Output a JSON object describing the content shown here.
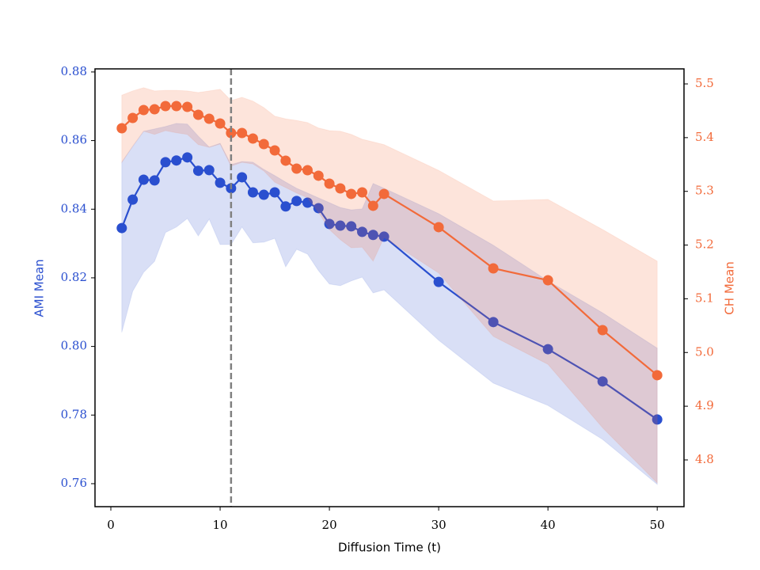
{
  "chart_data": {
    "type": "line",
    "xlabel": "Diffusion Time (t)",
    "ylabel": "AMI Mean",
    "y2label": "CH Mean",
    "x": [
      1,
      2,
      3,
      4,
      5,
      6,
      7,
      8,
      9,
      10,
      11,
      12,
      13,
      14,
      15,
      16,
      17,
      18,
      19,
      20,
      21,
      22,
      23,
      24,
      25,
      30,
      35,
      40,
      45,
      50
    ],
    "series": [
      {
        "color": "#2a4fcf",
        "axis": "y",
        "values": [
          0.8345,
          0.8428,
          0.8486,
          0.8484,
          0.8537,
          0.8542,
          0.8551,
          0.8512,
          0.8514,
          0.8477,
          0.8461,
          0.8493,
          0.8449,
          0.8442,
          0.8449,
          0.8408,
          0.8424,
          0.8419,
          0.8403,
          0.8357,
          0.8352,
          0.835,
          0.8334,
          0.8325,
          0.832,
          0.8188,
          0.8071,
          0.7992,
          0.7898,
          0.7787
        ],
        "upper": [
          0.8537,
          0.8583,
          0.8627,
          0.8634,
          0.8641,
          0.865,
          0.8648,
          0.8613,
          0.8581,
          0.8592,
          0.853,
          0.8539,
          0.8537,
          0.8516,
          0.8498,
          0.8479,
          0.8461,
          0.8447,
          0.8433,
          0.8419,
          0.8405,
          0.8398,
          0.8401,
          0.8475,
          0.8461,
          0.8387,
          0.8295,
          0.8191,
          0.8098,
          0.7995
        ],
        "lower": [
          0.8041,
          0.8161,
          0.8216,
          0.8248,
          0.8332,
          0.8348,
          0.8373,
          0.8322,
          0.8371,
          0.8297,
          0.8297,
          0.8348,
          0.8302,
          0.8304,
          0.8315,
          0.8232,
          0.8283,
          0.8269,
          0.8221,
          0.8182,
          0.8177,
          0.8191,
          0.8202,
          0.8156,
          0.8165,
          0.8018,
          0.7893,
          0.7828,
          0.7729,
          0.7598
        ]
      },
      {
        "color": "#f26a3a",
        "axis": "y2",
        "values": [
          5.4175,
          5.4366,
          5.4514,
          5.4528,
          5.4587,
          5.4587,
          5.4573,
          5.4425,
          5.4352,
          5.4263,
          5.4086,
          5.4086,
          5.3983,
          5.388,
          5.3762,
          5.3571,
          5.3423,
          5.3394,
          5.3291,
          5.3143,
          5.3055,
          5.2952,
          5.2981,
          5.2731,
          5.2952,
          5.2333,
          5.1566,
          5.1345,
          5.0417,
          4.9577
        ],
        "upper": [
          5.479,
          5.487,
          5.493,
          5.487,
          5.488,
          5.488,
          5.487,
          5.484,
          5.487,
          5.49,
          5.469,
          5.475,
          5.468,
          5.456,
          5.44,
          5.435,
          5.432,
          5.428,
          5.418,
          5.413,
          5.412,
          5.406,
          5.397,
          5.392,
          5.387,
          5.339,
          5.282,
          5.285,
          5.229,
          5.17
        ],
        "lower": [
          5.354,
          5.384,
          5.412,
          5.406,
          5.413,
          5.409,
          5.406,
          5.387,
          5.382,
          5.388,
          5.347,
          5.354,
          5.351,
          5.338,
          5.317,
          5.307,
          5.297,
          5.288,
          5.261,
          5.229,
          5.21,
          5.195,
          5.196,
          5.17,
          5.214,
          5.148,
          5.03,
          4.978,
          4.86,
          4.757
        ]
      }
    ],
    "vline": 11,
    "vline_color": "#808080",
    "xlim": [
      -1.45,
      52.45
    ],
    "xticks": [
      0,
      10,
      20,
      30,
      40,
      50
    ],
    "ylim": [
      0.7533,
      0.8809
    ],
    "yticks": [
      0.76,
      0.78,
      {
        "value": 0.8,
        "label": "0.80"
      },
      0.82,
      0.84,
      0.86,
      0.88
    ],
    "y2lim": [
      4.713,
      5.528
    ],
    "y2ticks": [
      4.8,
      4.9,
      {
        "value": 5,
        "label": "5.0"
      },
      5.1,
      5.2,
      5.3,
      5.4,
      5.5
    ]
  }
}
